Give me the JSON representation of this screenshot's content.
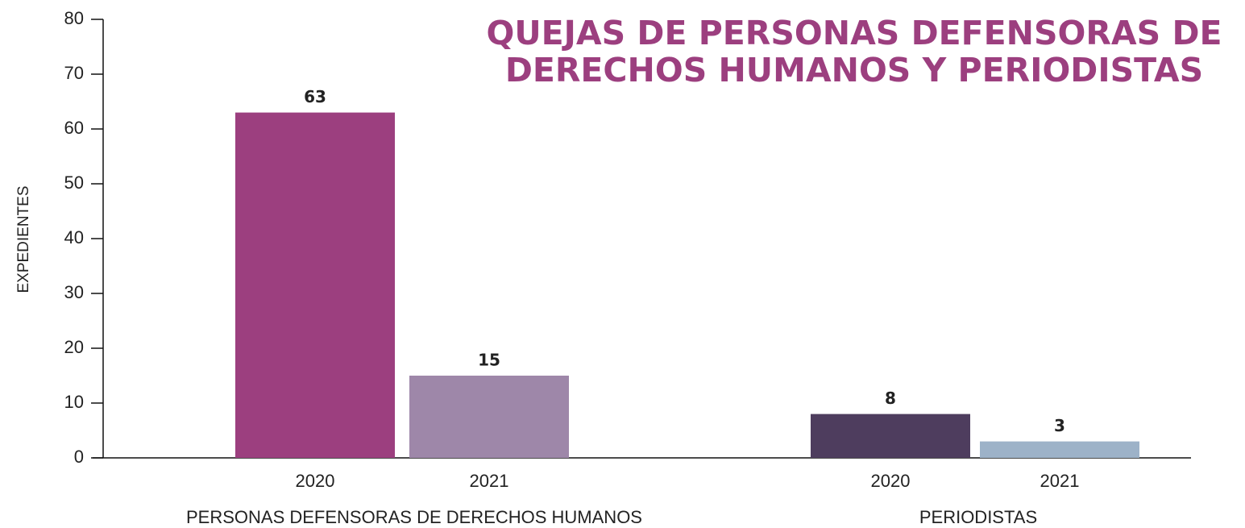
{
  "chart_data": {
    "type": "bar",
    "title": "QUEJAS DE PERSONAS DEFENSORAS DE DERECHOS HUMANOS Y PERIODISTAS",
    "title_color": "#9c3f7f",
    "ylabel": "EXPEDIENTES",
    "ylim": [
      0,
      80
    ],
    "yticks": [
      0,
      10,
      20,
      30,
      40,
      50,
      60,
      70,
      80
    ],
    "groups": [
      {
        "label": "PERSONAS DEFENSORAS DE DERECHOS HUMANOS",
        "categories": [
          "2020",
          "2021"
        ],
        "values": [
          63,
          15
        ],
        "colors": [
          "#9c3f7f",
          "#9e87a9"
        ]
      },
      {
        "label": "PERIODISTAS",
        "categories": [
          "2020",
          "2021"
        ],
        "values": [
          8,
          3
        ],
        "colors": [
          "#4e3d5e",
          "#9db2c8"
        ]
      }
    ]
  }
}
